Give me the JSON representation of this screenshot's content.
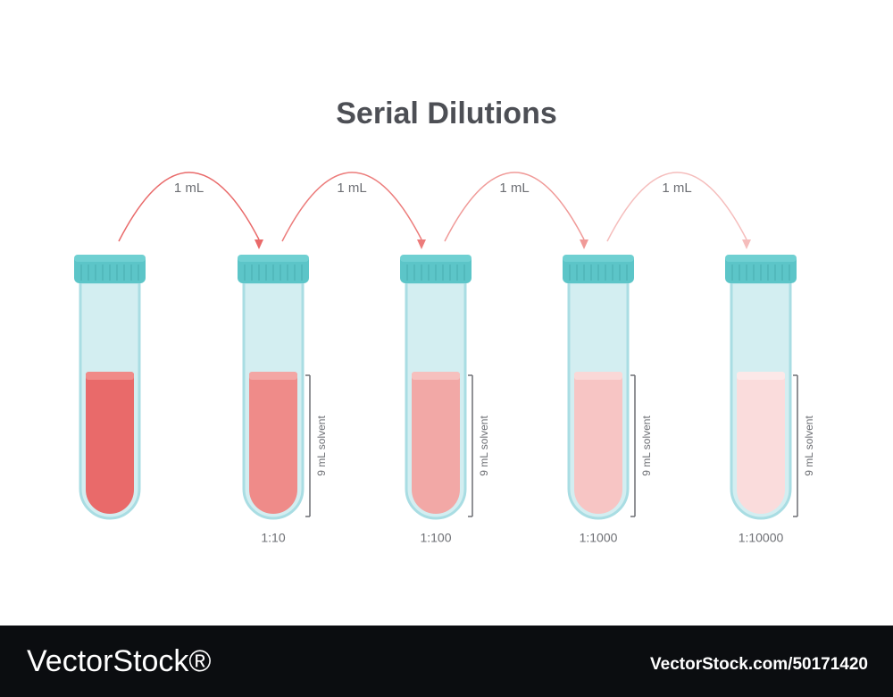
{
  "title": "Serial Dilutions",
  "transfers": [
    "1 mL",
    "1 mL",
    "1 mL",
    "1 mL"
  ],
  "dilutions": [
    {
      "solvent": "9 mL solvent",
      "ratio": "1:10"
    },
    {
      "solvent": "9 mL solvent",
      "ratio": "1:100"
    },
    {
      "solvent": "9 mL solvent",
      "ratio": "1:1000"
    },
    {
      "solvent": "9 mL solvent",
      "ratio": "1:10000"
    }
  ],
  "footer": {
    "brand": "VectorStock®",
    "id": "VectorStock.com/50171420"
  }
}
